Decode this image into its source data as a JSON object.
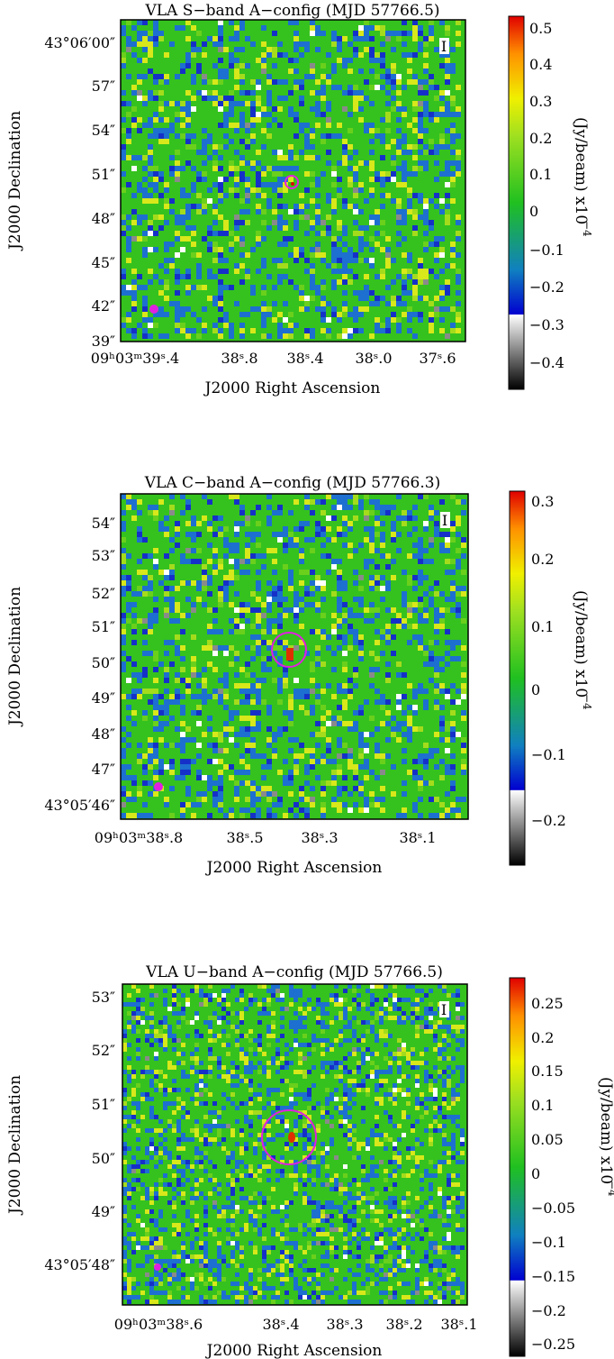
{
  "panels": [
    {
      "title": "VLA S−band A−config (MJD 57766.5)",
      "stokes_label": "I",
      "y_axis_label": "J2000 Declination",
      "x_axis_label": "J2000 Right Ascension",
      "y_ticks": [
        "43°06′00″",
        "57″",
        "54″",
        "51″",
        "48″",
        "45″",
        "42″",
        "39″"
      ],
      "x_ticks": [
        "09ʰ03ᵐ39ˢ.4",
        "38ˢ.8",
        "38ˢ.4",
        "38ˢ.0",
        "37ˢ.6"
      ],
      "colorbar_ticks": [
        "0.5",
        "0.4",
        "0.3",
        "0.2",
        "0.1",
        "0",
        "−0.1",
        "−0.2",
        "−0.3",
        "−0.4"
      ],
      "colorbar_unit": "(Jy/beam)  x10",
      "colorbar_exponent": "−4",
      "colorbar_range": [
        -0.47,
        0.53
      ],
      "gray_below": -0.21
    },
    {
      "title": "VLA C−band A−config (MJD 57766.3)",
      "stokes_label": "I",
      "y_axis_label": "J2000 Declination",
      "x_axis_label": "J2000 Right Ascension",
      "y_ticks": [
        "54″",
        "53″",
        "52″",
        "51″",
        "50″",
        "49″",
        "48″",
        "47″",
        "43°05′46″"
      ],
      "x_ticks": [
        "09ʰ03ᵐ38ˢ.8",
        "38ˢ.5",
        "38ˢ.3",
        "38ˢ.1"
      ],
      "colorbar_ticks": [
        "0.3",
        "0.2",
        "0.1",
        "0",
        "−0.1",
        "−0.2"
      ],
      "colorbar_unit": "(Jy/beam)  x10",
      "colorbar_exponent": "−4",
      "colorbar_range": [
        -0.26,
        0.32
      ],
      "gray_below": -0.13
    },
    {
      "title": "VLA U−band A−config (MJD 57766.5)",
      "stokes_label": "I",
      "y_axis_label": "J2000 Declination",
      "x_axis_label": "J2000 Right Ascension",
      "y_ticks": [
        "53″",
        "52″",
        "51″",
        "50″",
        "49″",
        "43°05′48″"
      ],
      "x_ticks": [
        "09ʰ03ᵐ38ˢ.6",
        "38ˢ.4",
        "38ˢ.3",
        "38ˢ.2",
        "38ˢ.1"
      ],
      "colorbar_ticks": [
        "0.25",
        "0.2",
        "0.15",
        "0.1",
        "0.05",
        "0",
        "−0.05",
        "−0.1",
        "−0.15",
        "−0.2",
        "−0.25"
      ],
      "colorbar_unit": "(Jy/beam)  x10",
      "colorbar_exponent": "−4",
      "colorbar_range": [
        -0.28,
        0.28
      ],
      "gray_below": -0.13
    }
  ],
  "colors": {
    "map_base": "#35c21e",
    "marker_circle": "#e020e0",
    "beam": "#e020e0"
  }
}
